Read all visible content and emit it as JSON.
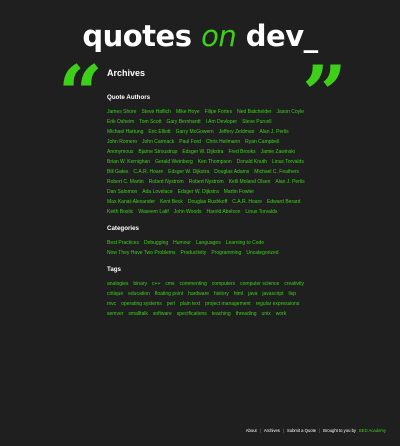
{
  "logo": {
    "part1": "quotes ",
    "part2": "on",
    "part3": " dev_"
  },
  "quote_marks": {
    "open": "“",
    "close": "”"
  },
  "page_title": "Archives",
  "sections": {
    "authors": {
      "title": "Quote Authors",
      "items": [
        "James Shore",
        "Steve Haflich",
        "Mike Hoye",
        "Filipe Fortes",
        "Ned Batchelder",
        "Jason Coyle",
        "Erik Osheim",
        "Tom Scott",
        "Gary Bernhardt",
        "I Am Devloper",
        "Steve Purcell",
        "Michael Hartung",
        "Eric Elliott",
        "Garry McGowern",
        "Jeffery Zeldman",
        "Alan J. Perlis",
        "John Romero",
        "John Carmack",
        "Paul Ford",
        "Chris Heilmann",
        "Ryan Campbell",
        "Anonymous",
        "Bjarne Stroustrup",
        "Edsger W. Dijkstra",
        "Fred Brooks",
        "Jamie Zawinski",
        "Brian W. Kernighan",
        "Gerald Weinberg",
        "Ken Thompson",
        "Donald Knuth",
        "Linus Torvalds",
        "Bill Gates",
        "C.A.R. Hoare",
        "Edsger W. Dijkstra",
        "Douglas Adams",
        "Michael C. Feathers",
        "Robert C. Martin",
        "Robert Nystrom",
        "Robert Nystrom",
        "Kelli Moland Olsen",
        "Alan J. Perlis",
        "Dan Salomon",
        "Ada Lovelace",
        "Edsger W. Dijkstra",
        "Martin Fowler",
        "Max Kanat-Alexander",
        "Kent Beck",
        "Douglas Rushkoff",
        "C.A.R. Hoare",
        "Edward Berard",
        "Keith Bostic",
        "Waseem Latif",
        "John Woods",
        "Harold Abelson",
        "Linus Torvalds"
      ]
    },
    "categories": {
      "title": "Categories",
      "items": [
        "Best Practices",
        "Debugging",
        "Humour",
        "Languages",
        "Learning to Code",
        "Now They Have Two Problems",
        "Productivity",
        "Programming",
        "Uncategorized"
      ]
    },
    "tags": {
      "title": "Tags",
      "items": [
        "analogies",
        "binary",
        "c++",
        "cms",
        "commenting",
        "computers",
        "computer science",
        "creativity",
        "critique",
        "education",
        "floating point",
        "hardware",
        "history",
        "html",
        "java",
        "javascript",
        "lisp",
        "mvc",
        "operating systems",
        "perl",
        "plain text",
        "project management",
        "regular expressions",
        "semver",
        "smalltalk",
        "software",
        "specifications",
        "teaching",
        "threading",
        "unix",
        "work"
      ]
    }
  },
  "footer": {
    "about": "About",
    "archives": "Archives",
    "submit": "Submit a Quote",
    "brought_by": "Brought to you by",
    "brand": "BED Academy",
    "separator": "|"
  }
}
